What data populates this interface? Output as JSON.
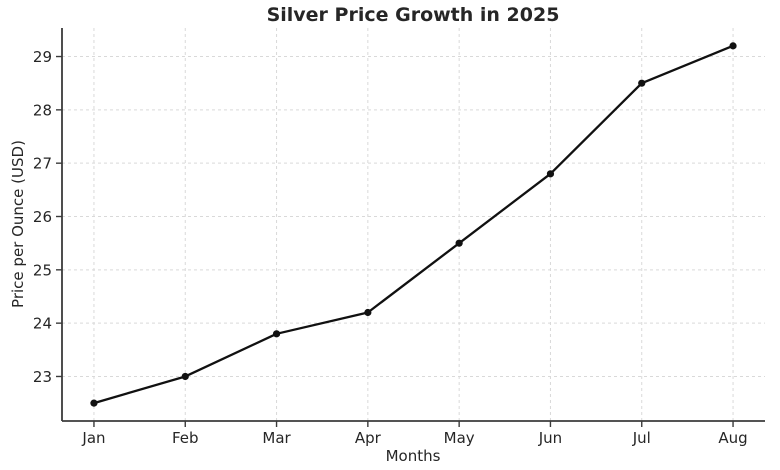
{
  "page": {
    "background_color": "#ffffff"
  },
  "chart_data": {
    "type": "line",
    "title": "Silver Price Growth in 2025",
    "xlabel": "Months",
    "ylabel": "Price per Ounce (USD)",
    "categories": [
      "Jan",
      "Feb",
      "Mar",
      "Apr",
      "May",
      "Jun",
      "Jul",
      "Aug"
    ],
    "values": [
      22.5,
      23.0,
      23.8,
      24.2,
      25.5,
      26.8,
      28.5,
      29.2
    ],
    "yticks": [
      23,
      24,
      25,
      26,
      27,
      28,
      29
    ],
    "ylim": [
      22.165,
      29.535
    ],
    "x_margin": 0.35,
    "grid": true,
    "legend": false,
    "line_color": "#111111",
    "marker_color": "#111111",
    "marker_shape": "circle",
    "grid_color": "#d9d9d9",
    "spine_color": "#3b3b3b",
    "tick_color": "#3b3b3b",
    "text_color": "#262626"
  }
}
